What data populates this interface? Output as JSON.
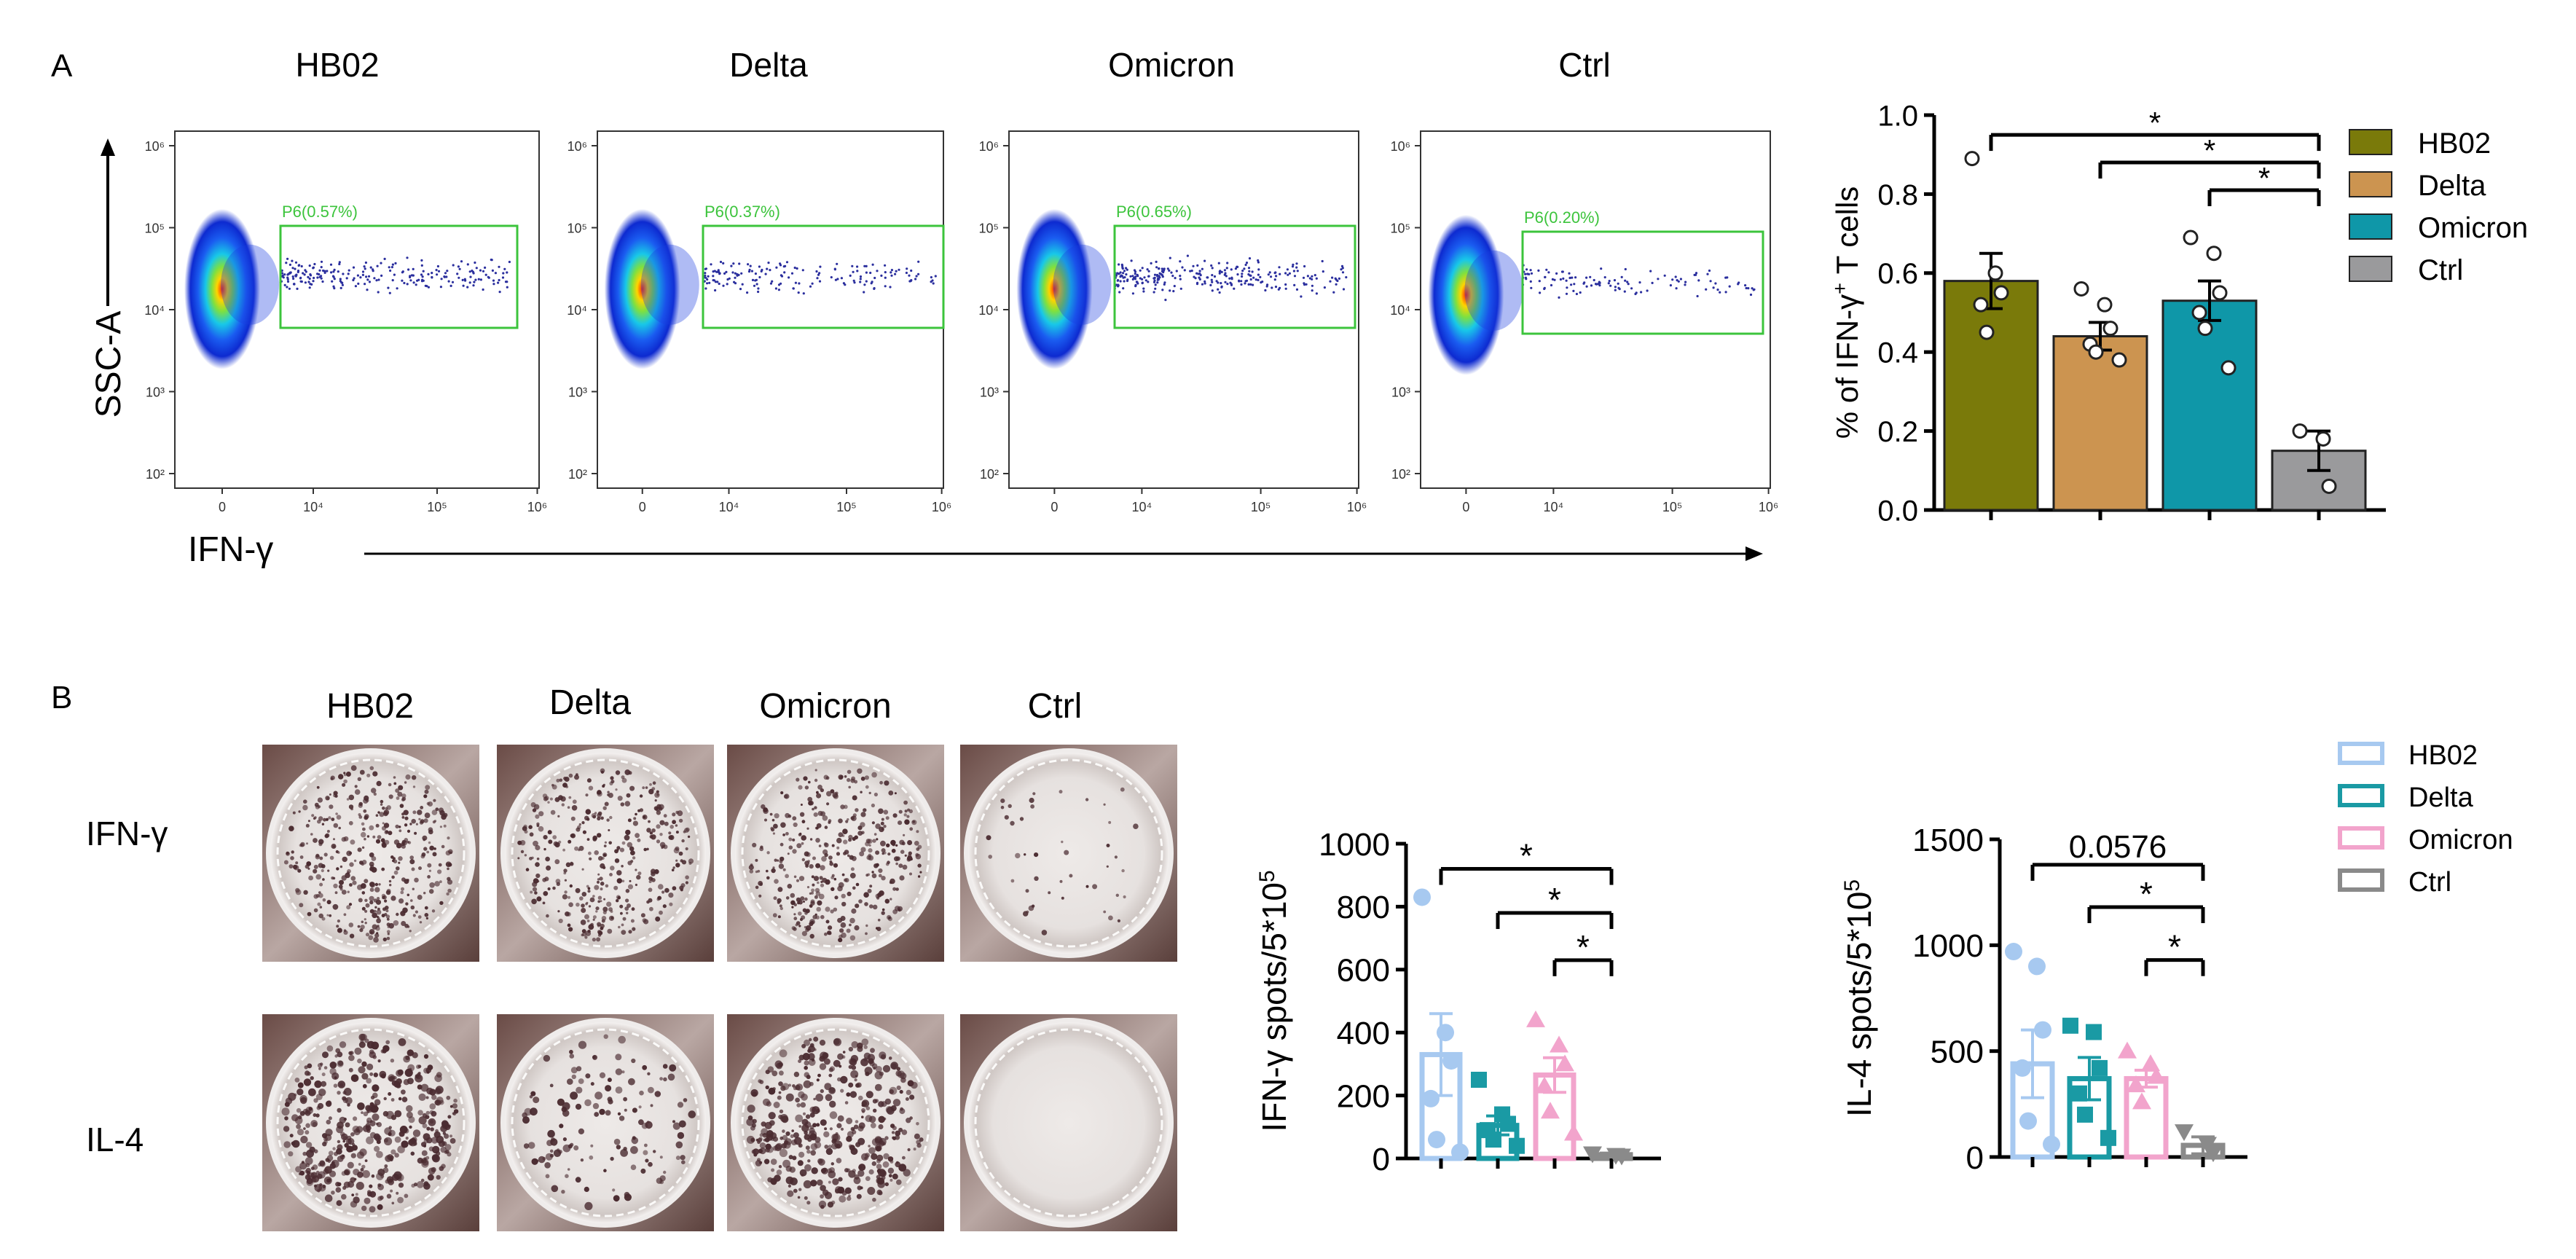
{
  "panel_a": {
    "letter": "A",
    "flow": {
      "y_label": "SSC-A",
      "x_label": "IFN-γ",
      "y_ticks": [
        "10⁶",
        "10⁵",
        "10⁴",
        "10³",
        "10²"
      ],
      "x_ticks": [
        "0",
        "10⁴",
        "10⁵",
        "10⁶"
      ],
      "plots": [
        {
          "title": "HB02",
          "gate": "P6(0.57%)"
        },
        {
          "title": "Delta",
          "gate": "P6(0.37%)"
        },
        {
          "title": "Omicron",
          "gate": "P6(0.65%)"
        },
        {
          "title": "Ctrl",
          "gate": "P6(0.20%)"
        }
      ]
    }
  },
  "panel_b": {
    "letter": "B",
    "well_titles": [
      "HB02",
      "Delta",
      "Omicron",
      "Ctrl"
    ],
    "row_labels": [
      "IFN-γ",
      "IL-4"
    ]
  },
  "colors": {
    "HB02_a": "#7a7a0a",
    "Delta_a": "#cc9450",
    "Omicron_a": "#0f97a8",
    "Ctrl_a": "#9a9a9c",
    "HB02_b": "#a7c9f0",
    "Delta_b": "#1a9aa4",
    "Omicron_b": "#f2a4cc",
    "Ctrl_b": "#8a8a8a"
  },
  "chart_data": [
    {
      "type": "bar",
      "panel": "A",
      "categories": [
        "HB02",
        "Delta",
        "Omicron",
        "Ctrl"
      ],
      "values": [
        0.58,
        0.44,
        0.53,
        0.15
      ],
      "errors": [
        0.07,
        0.035,
        0.05,
        0.05
      ],
      "points": [
        [
          0.89,
          0.6,
          0.55,
          0.52,
          0.45
        ],
        [
          0.56,
          0.52,
          0.46,
          0.42,
          0.4,
          0.38
        ],
        [
          0.69,
          0.65,
          0.55,
          0.5,
          0.46,
          0.36
        ],
        [
          0.2,
          0.18,
          0.06
        ]
      ],
      "ylabel_main": "% of IFN-γ",
      "ylabel_sup": "+",
      "ylabel_end": " T  cells",
      "ylim": [
        0,
        1.0
      ],
      "yticks": [
        0.0,
        0.2,
        0.4,
        0.6,
        0.8,
        1.0
      ],
      "ytick_labels": [
        "0.0",
        "0.2",
        "0.4",
        "0.6",
        "0.8",
        "1.0"
      ],
      "legend": [
        "HB02",
        "Delta",
        "Omicron",
        "Ctrl"
      ],
      "significance": [
        {
          "from": 0,
          "to": 3,
          "y": 0.95,
          "label": "*"
        },
        {
          "from": 1,
          "to": 3,
          "y": 0.88,
          "label": "*"
        },
        {
          "from": 2,
          "to": 3,
          "y": 0.81,
          "label": "*"
        }
      ]
    },
    {
      "type": "bar",
      "panel": "B-left",
      "categories": [
        "HB02",
        "Delta",
        "Omicron",
        "Ctrl"
      ],
      "values": [
        330,
        105,
        265,
        12
      ],
      "errors": [
        130,
        30,
        55,
        5
      ],
      "points": [
        [
          830,
          400,
          310,
          190,
          60,
          20
        ],
        [
          250,
          140,
          110,
          90,
          60,
          40
        ],
        [
          440,
          360,
          300,
          230,
          150,
          80
        ],
        [
          15,
          10,
          8
        ]
      ],
      "ylabel_main": "IFN-γ spots/5*10",
      "ylabel_sup": "5",
      "ylim": [
        0,
        1000
      ],
      "yticks": [
        0,
        200,
        400,
        600,
        800,
        1000
      ],
      "ytick_labels": [
        "0",
        "200",
        "400",
        "600",
        "800",
        "1000"
      ],
      "significance": [
        {
          "from": 0,
          "to": 3,
          "y": 920,
          "label": "*"
        },
        {
          "from": 1,
          "to": 3,
          "y": 780,
          "label": "*"
        },
        {
          "from": 2,
          "to": 3,
          "y": 630,
          "label": "*"
        }
      ]
    },
    {
      "type": "bar",
      "panel": "B-right",
      "categories": [
        "HB02",
        "Delta",
        "Omicron",
        "Ctrl"
      ],
      "values": [
        440,
        370,
        370,
        55
      ],
      "errors": [
        160,
        100,
        40,
        40
      ],
      "points": [
        [
          970,
          900,
          600,
          420,
          170,
          60
        ],
        [
          620,
          590,
          420,
          300,
          200,
          90
        ],
        [
          500,
          440,
          380,
          340,
          260
        ],
        [
          120,
          60,
          20
        ]
      ],
      "ylabel_main": "IL-4 spots/5*10",
      "ylabel_sup": "5",
      "ylim": [
        0,
        1500
      ],
      "yticks": [
        0,
        500,
        1000,
        1500
      ],
      "ytick_labels": [
        "0",
        "500",
        "1000",
        "1500"
      ],
      "legend": [
        "HB02",
        "Delta",
        "Omicron",
        "Ctrl"
      ],
      "significance": [
        {
          "from": 0,
          "to": 3,
          "y": 1380,
          "label": "0.0576"
        },
        {
          "from": 1,
          "to": 3,
          "y": 1180,
          "label": "*"
        },
        {
          "from": 2,
          "to": 3,
          "y": 930,
          "label": "*"
        }
      ]
    }
  ]
}
